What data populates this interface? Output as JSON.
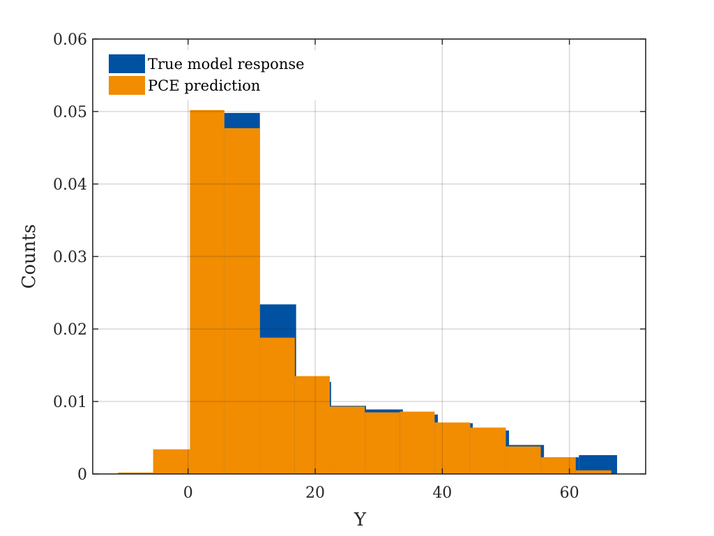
{
  "chart_data": {
    "type": "bar",
    "title": "",
    "xlabel": "Y",
    "ylabel": "Counts",
    "xlim": [
      -15,
      72
    ],
    "ylim": [
      0,
      0.06
    ],
    "xticks": [
      0,
      20,
      40,
      60
    ],
    "yticks": [
      0,
      0.01,
      0.02,
      0.03,
      0.04,
      0.05,
      0.06
    ],
    "xtick_labels": [
      "0",
      "20",
      "40",
      "60"
    ],
    "ytick_labels": [
      "0",
      "0.01",
      "0.02",
      "0.03",
      "0.04",
      "0.05",
      "0.06"
    ],
    "grid": true,
    "legend_position": "top-left",
    "series": [
      {
        "name": "True model response",
        "color": "#0051a2",
        "bins": [
          {
            "x0": 0.3,
            "x1": 5.7,
            "value": 0.0501
          },
          {
            "x0": 5.7,
            "x1": 11.3,
            "value": 0.0498
          },
          {
            "x0": 11.3,
            "x1": 17.0,
            "value": 0.0234
          },
          {
            "x0": 17.0,
            "x1": 22.5,
            "value": 0.0127
          },
          {
            "x0": 22.5,
            "x1": 28.0,
            "value": 0.0094
          },
          {
            "x0": 28.0,
            "x1": 33.8,
            "value": 0.0089
          },
          {
            "x0": 33.8,
            "x1": 39.3,
            "value": 0.0082
          },
          {
            "x0": 39.3,
            "x1": 44.8,
            "value": 0.007
          },
          {
            "x0": 44.8,
            "x1": 50.5,
            "value": 0.006
          },
          {
            "x0": 50.5,
            "x1": 56.0,
            "value": 0.004
          },
          {
            "x0": 56.0,
            "x1": 61.5,
            "value": 0.0023
          },
          {
            "x0": 61.5,
            "x1": 67.5,
            "value": 0.0026
          }
        ]
      },
      {
        "name": "PCE prediction",
        "color": "#f28c00",
        "bins": [
          {
            "x0": -11.0,
            "x1": -5.5,
            "value": 0.0002
          },
          {
            "x0": -5.5,
            "x1": 0.3,
            "value": 0.0034
          },
          {
            "x0": 0.3,
            "x1": 5.7,
            "value": 0.0502
          },
          {
            "x0": 5.7,
            "x1": 11.3,
            "value": 0.0477
          },
          {
            "x0": 11.3,
            "x1": 16.8,
            "value": 0.0188
          },
          {
            "x0": 16.8,
            "x1": 22.3,
            "value": 0.0135
          },
          {
            "x0": 22.3,
            "x1": 27.8,
            "value": 0.0093
          },
          {
            "x0": 27.8,
            "x1": 33.3,
            "value": 0.0085
          },
          {
            "x0": 33.3,
            "x1": 38.8,
            "value": 0.0086
          },
          {
            "x0": 38.8,
            "x1": 44.4,
            "value": 0.0071
          },
          {
            "x0": 44.4,
            "x1": 50.0,
            "value": 0.0064
          },
          {
            "x0": 50.0,
            "x1": 55.5,
            "value": 0.0038
          },
          {
            "x0": 55.5,
            "x1": 61.0,
            "value": 0.0023
          },
          {
            "x0": 61.0,
            "x1": 66.6,
            "value": 0.0005
          }
        ]
      }
    ]
  }
}
